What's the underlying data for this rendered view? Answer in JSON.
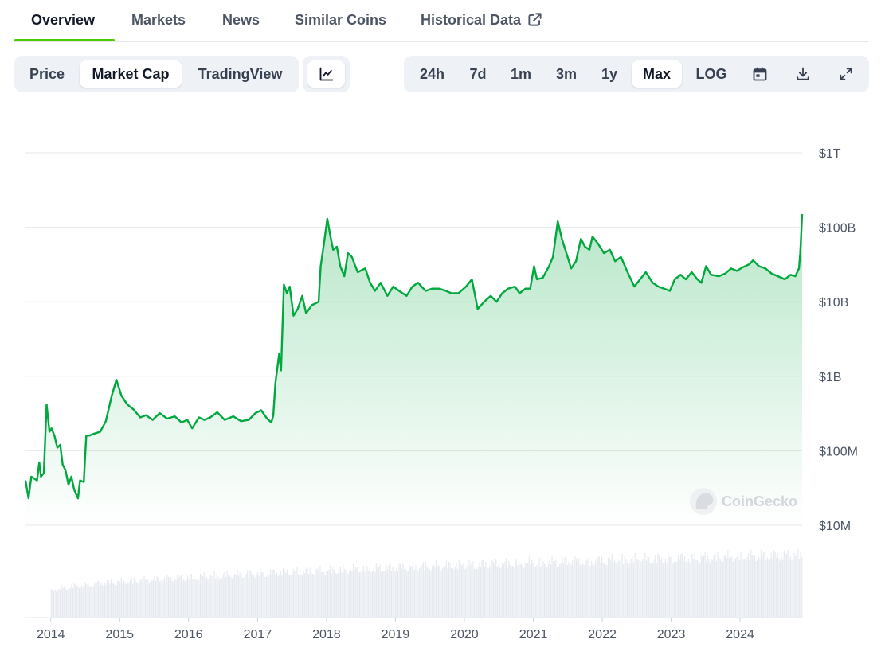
{
  "tabs": [
    {
      "label": "Overview",
      "active": true
    },
    {
      "label": "Markets",
      "active": false
    },
    {
      "label": "News",
      "active": false
    },
    {
      "label": "Similar Coins",
      "active": false
    },
    {
      "label": "Historical Data",
      "active": false,
      "icon": "external-link-icon"
    }
  ],
  "chart_type_toggle": {
    "options": [
      "Price",
      "Market Cap",
      "TradingView"
    ],
    "selected": "Market Cap"
  },
  "chart_style_button": {
    "icon": "line-chart-icon"
  },
  "time_ranges": {
    "options": [
      "24h",
      "7d",
      "1m",
      "3m",
      "1y",
      "Max"
    ],
    "selected": "Max"
  },
  "log_label": "LOG",
  "toolbar_icons": [
    "calendar-icon",
    "download-icon",
    "expand-icon"
  ],
  "watermark": "CoinGecko",
  "colors": {
    "line": "#00a83e",
    "accent_tab": "#4bcc00",
    "volume": "#e5e9ef",
    "grid": "#e5e7eb"
  },
  "chart_data": {
    "type": "area",
    "y_scale": "log",
    "y_ticks": [
      {
        "label": "$1T",
        "value": 1000000000000.0
      },
      {
        "label": "$100B",
        "value": 100000000000.0
      },
      {
        "label": "$10B",
        "value": 10000000000.0
      },
      {
        "label": "$1B",
        "value": 1000000000.0
      },
      {
        "label": "$100M",
        "value": 100000000.0
      },
      {
        "label": "$10M",
        "value": 10000000.0
      }
    ],
    "ylim": [
      10000000.0,
      1000000000000.0
    ],
    "x_ticks": [
      "2014",
      "2015",
      "2016",
      "2017",
      "2018",
      "2019",
      "2020",
      "2021",
      "2022",
      "2023",
      "2024"
    ],
    "xlim": [
      "2013-08-20",
      "2024-11-25"
    ],
    "grid": true,
    "series": [
      {
        "values": [
          [
            "2013-08-20",
            40000000.0
          ],
          [
            "2013-09-05",
            23000000.0
          ],
          [
            "2013-09-20",
            45000000.0
          ],
          [
            "2013-10-20",
            40000000.0
          ],
          [
            "2013-11-01",
            70000000.0
          ],
          [
            "2013-11-10",
            45000000.0
          ],
          [
            "2013-11-25",
            50000000.0
          ],
          [
            "2013-12-10",
            420000000.0
          ],
          [
            "2013-12-25",
            180000000.0
          ],
          [
            "2014-01-05",
            200000000.0
          ],
          [
            "2014-01-20",
            160000000.0
          ],
          [
            "2014-02-05",
            110000000.0
          ],
          [
            "2014-02-20",
            120000000.0
          ],
          [
            "2014-03-05",
            65000000.0
          ],
          [
            "2014-03-20",
            55000000.0
          ],
          [
            "2014-04-05",
            35000000.0
          ],
          [
            "2014-04-20",
            45000000.0
          ],
          [
            "2014-05-05",
            30000000.0
          ],
          [
            "2014-05-25",
            23000000.0
          ],
          [
            "2014-06-05",
            40000000.0
          ],
          [
            "2014-06-25",
            38000000.0
          ],
          [
            "2014-07-08",
            160000000.0
          ],
          [
            "2014-07-25",
            160000000.0
          ],
          [
            "2014-08-20",
            170000000.0
          ],
          [
            "2014-09-20",
            180000000.0
          ],
          [
            "2014-10-20",
            250000000.0
          ],
          [
            "2014-11-20",
            550000000.0
          ],
          [
            "2014-12-15",
            900000000.0
          ],
          [
            "2015-01-10",
            550000000.0
          ],
          [
            "2015-02-10",
            420000000.0
          ],
          [
            "2015-03-15",
            360000000.0
          ],
          [
            "2015-04-20",
            280000000.0
          ],
          [
            "2015-05-20",
            300000000.0
          ],
          [
            "2015-06-25",
            260000000.0
          ],
          [
            "2015-08-01",
            320000000.0
          ],
          [
            "2015-09-10",
            270000000.0
          ],
          [
            "2015-10-20",
            290000000.0
          ],
          [
            "2015-11-25",
            240000000.0
          ],
          [
            "2015-12-25",
            260000000.0
          ],
          [
            "2016-01-20",
            200000000.0
          ],
          [
            "2016-02-25",
            280000000.0
          ],
          [
            "2016-03-25",
            260000000.0
          ],
          [
            "2016-04-25",
            280000000.0
          ],
          [
            "2016-06-01",
            330000000.0
          ],
          [
            "2016-07-10",
            260000000.0
          ],
          [
            "2016-08-25",
            290000000.0
          ],
          [
            "2016-10-05",
            250000000.0
          ],
          [
            "2016-11-15",
            260000000.0
          ],
          [
            "2016-12-20",
            320000000.0
          ],
          [
            "2017-01-20",
            350000000.0
          ],
          [
            "2017-02-20",
            270000000.0
          ],
          [
            "2017-03-15",
            240000000.0
          ],
          [
            "2017-03-25",
            300000000.0
          ],
          [
            "2017-04-05",
            800000000.0
          ],
          [
            "2017-04-25",
            2000000000.0
          ],
          [
            "2017-05-05",
            1200000000.0
          ],
          [
            "2017-05-20",
            17000000000.0
          ],
          [
            "2017-06-05",
            13000000000.0
          ],
          [
            "2017-06-20",
            16000000000.0
          ],
          [
            "2017-07-10",
            6500000000.0
          ],
          [
            "2017-08-01",
            8000000000.0
          ],
          [
            "2017-08-25",
            12000000000.0
          ],
          [
            "2017-09-15",
            7000000000.0
          ],
          [
            "2017-10-15",
            9000000000.0
          ],
          [
            "2017-11-20",
            10000000000.0
          ],
          [
            "2017-12-01",
            30000000000.0
          ],
          [
            "2017-12-20",
            65000000000.0
          ],
          [
            "2018-01-05",
            130000000000.0
          ],
          [
            "2018-01-20",
            80000000000.0
          ],
          [
            "2018-02-05",
            50000000000.0
          ],
          [
            "2018-02-25",
            55000000000.0
          ],
          [
            "2018-03-15",
            30000000000.0
          ],
          [
            "2018-04-05",
            22000000000.0
          ],
          [
            "2018-04-25",
            45000000000.0
          ],
          [
            "2018-05-15",
            40000000000.0
          ],
          [
            "2018-06-15",
            25000000000.0
          ],
          [
            "2018-07-25",
            28000000000.0
          ],
          [
            "2018-08-20",
            18000000000.0
          ],
          [
            "2018-09-15",
            14000000000.0
          ],
          [
            "2018-10-15",
            18000000000.0
          ],
          [
            "2018-11-20",
            12000000000.0
          ],
          [
            "2018-12-20",
            16000000000.0
          ],
          [
            "2019-01-20",
            14000000000.0
          ],
          [
            "2019-03-01",
            12000000000.0
          ],
          [
            "2019-04-01",
            16000000000.0
          ],
          [
            "2019-05-01",
            18000000000.0
          ],
          [
            "2019-06-10",
            14000000000.0
          ],
          [
            "2019-07-15",
            15000000000.0
          ],
          [
            "2019-08-20",
            15000000000.0
          ],
          [
            "2019-09-25",
            14000000000.0
          ],
          [
            "2019-10-25",
            13000000000.0
          ],
          [
            "2019-12-01",
            13000000000.0
          ],
          [
            "2020-01-10",
            16000000000.0
          ],
          [
            "2020-02-10",
            20000000000.0
          ],
          [
            "2020-03-12",
            8000000000.0
          ],
          [
            "2020-04-15",
            10000000000.0
          ],
          [
            "2020-05-20",
            12000000000.0
          ],
          [
            "2020-06-20",
            10000000000.0
          ],
          [
            "2020-07-20",
            13000000000.0
          ],
          [
            "2020-08-20",
            15000000000.0
          ],
          [
            "2020-09-25",
            16000000000.0
          ],
          [
            "2020-10-20",
            13000000000.0
          ],
          [
            "2020-11-20",
            15000000000.0
          ],
          [
            "2020-12-15",
            15000000000.0
          ],
          [
            "2021-01-05",
            30000000000.0
          ],
          [
            "2021-01-20",
            20000000000.0
          ],
          [
            "2021-02-20",
            21000000000.0
          ],
          [
            "2021-03-25",
            30000000000.0
          ],
          [
            "2021-04-15",
            40000000000.0
          ],
          [
            "2021-05-10",
            120000000000.0
          ],
          [
            "2021-06-01",
            70000000000.0
          ],
          [
            "2021-06-25",
            45000000000.0
          ],
          [
            "2021-07-20",
            28000000000.0
          ],
          [
            "2021-08-15",
            35000000000.0
          ],
          [
            "2021-09-10",
            70000000000.0
          ],
          [
            "2021-10-01",
            55000000000.0
          ],
          [
            "2021-10-25",
            50000000000.0
          ],
          [
            "2021-11-10",
            75000000000.0
          ],
          [
            "2021-12-10",
            60000000000.0
          ],
          [
            "2022-01-10",
            45000000000.0
          ],
          [
            "2022-02-10",
            50000000000.0
          ],
          [
            "2022-03-10",
            35000000000.0
          ],
          [
            "2022-04-10",
            40000000000.0
          ],
          [
            "2022-05-15",
            25000000000.0
          ],
          [
            "2022-06-20",
            16000000000.0
          ],
          [
            "2022-07-20",
            20000000000.0
          ],
          [
            "2022-08-20",
            25000000000.0
          ],
          [
            "2022-09-25",
            18000000000.0
          ],
          [
            "2022-10-25",
            16000000000.0
          ],
          [
            "2022-11-25",
            15000000000.0
          ],
          [
            "2022-12-25",
            14000000000.0
          ],
          [
            "2023-01-20",
            20000000000.0
          ],
          [
            "2023-02-20",
            23000000000.0
          ],
          [
            "2023-03-20",
            20000000000.0
          ],
          [
            "2023-04-20",
            25000000000.0
          ],
          [
            "2023-05-20",
            20000000000.0
          ],
          [
            "2023-06-10",
            18000000000.0
          ],
          [
            "2023-07-05",
            30000000000.0
          ],
          [
            "2023-08-01",
            23000000000.0
          ],
          [
            "2023-09-10",
            22000000000.0
          ],
          [
            "2023-10-15",
            24000000000.0
          ],
          [
            "2023-11-15",
            28000000000.0
          ],
          [
            "2023-12-15",
            26000000000.0
          ],
          [
            "2024-01-15",
            29000000000.0
          ],
          [
            "2024-02-20",
            32000000000.0
          ],
          [
            "2024-03-10",
            36000000000.0
          ],
          [
            "2024-04-10",
            30000000000.0
          ],
          [
            "2024-05-15",
            28000000000.0
          ],
          [
            "2024-06-15",
            24000000000.0
          ],
          [
            "2024-07-20",
            22000000000.0
          ],
          [
            "2024-08-25",
            20000000000.0
          ],
          [
            "2024-09-25",
            23000000000.0
          ],
          [
            "2024-10-20",
            22000000000.0
          ],
          [
            "2024-11-08",
            28000000000.0
          ],
          [
            "2024-11-15",
            45000000000.0
          ],
          [
            "2024-11-20",
            80000000000.0
          ],
          [
            "2024-11-25",
            150000000000.0
          ]
        ]
      }
    ],
    "volume": {
      "start": "2014-01-01",
      "end": "2024-11-25",
      "ylim": [
        0,
        1
      ]
    }
  }
}
